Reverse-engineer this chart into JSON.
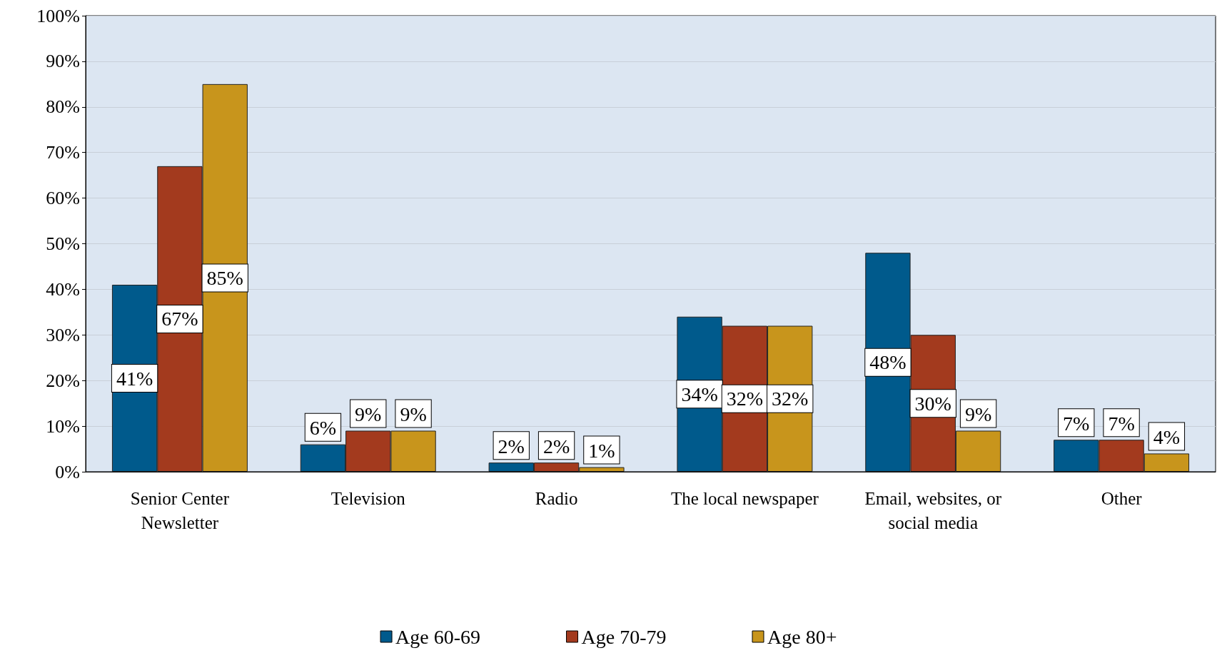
{
  "chart_data": {
    "type": "bar",
    "categories": [
      "Senior Center\nNewsletter",
      "Television",
      "Radio",
      "The local newspaper",
      "Email, websites, or\nsocial media",
      "Other"
    ],
    "series": [
      {
        "name": "Age 60-69",
        "color": "#005a8c",
        "values": [
          41,
          6,
          2,
          34,
          48,
          7
        ],
        "value_labels": [
          "41%",
          "6%",
          "2%",
          "34%",
          "48%",
          "7%"
        ]
      },
      {
        "name": "Age 70-79",
        "color": "#a33a1e",
        "values": [
          67,
          9,
          2,
          32,
          30,
          7
        ],
        "value_labels": [
          "67%",
          "9%",
          "2%",
          "32%",
          "30%",
          "7%"
        ]
      },
      {
        "name": "Age 80+",
        "color": "#c8951c",
        "values": [
          85,
          9,
          1,
          32,
          9,
          4
        ],
        "value_labels": [
          "85%",
          "9%",
          "1%",
          "32%",
          "9%",
          "4%"
        ]
      }
    ],
    "ylim": [
      0,
      100
    ],
    "yticks": [
      {
        "value": 0,
        "label": "0%"
      },
      {
        "value": 10,
        "label": "10%"
      },
      {
        "value": 20,
        "label": "20%"
      },
      {
        "value": 30,
        "label": "30%"
      },
      {
        "value": 40,
        "label": "40%"
      },
      {
        "value": 50,
        "label": "50%"
      },
      {
        "value": 60,
        "label": "60%"
      },
      {
        "value": 70,
        "label": "70%"
      },
      {
        "value": 80,
        "label": "80%"
      },
      {
        "value": 90,
        "label": "90%"
      },
      {
        "value": 100,
        "label": "100%"
      }
    ],
    "grid": "y",
    "legend": "bottom"
  }
}
